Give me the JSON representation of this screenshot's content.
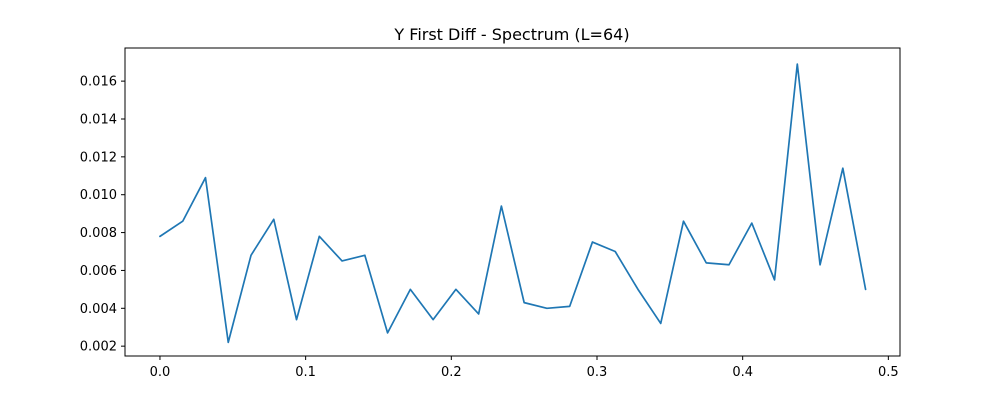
{
  "chart_data": {
    "type": "line",
    "title": "Y First Diff - Spectrum (L=64)",
    "xlabel": "",
    "ylabel": "",
    "xlim": [
      -0.024,
      0.508
    ],
    "ylim": [
      0.00148,
      0.01775
    ],
    "grid": false,
    "legend": "none",
    "x_ticks": [
      {
        "value": 0.0,
        "label": "0.0"
      },
      {
        "value": 0.1,
        "label": "0.1"
      },
      {
        "value": 0.2,
        "label": "0.2"
      },
      {
        "value": 0.3,
        "label": "0.3"
      },
      {
        "value": 0.4,
        "label": "0.4"
      },
      {
        "value": 0.5,
        "label": "0.5"
      }
    ],
    "y_ticks": [
      {
        "value": 0.002,
        "label": "0.002"
      },
      {
        "value": 0.004,
        "label": "0.004"
      },
      {
        "value": 0.006,
        "label": "0.006"
      },
      {
        "value": 0.008,
        "label": "0.008"
      },
      {
        "value": 0.01,
        "label": "0.010"
      },
      {
        "value": 0.012,
        "label": "0.012"
      },
      {
        "value": 0.014,
        "label": "0.014"
      },
      {
        "value": 0.016,
        "label": "0.016"
      }
    ],
    "series": [
      {
        "color": "#1f77b4",
        "x": [
          0.0,
          0.015625,
          0.03125,
          0.046875,
          0.0625,
          0.078125,
          0.09375,
          0.109375,
          0.125,
          0.140625,
          0.15625,
          0.171875,
          0.1875,
          0.203125,
          0.21875,
          0.234375,
          0.25,
          0.265625,
          0.28125,
          0.296875,
          0.3125,
          0.328125,
          0.34375,
          0.359375,
          0.375,
          0.390625,
          0.40625,
          0.421875,
          0.4375,
          0.453125,
          0.46875,
          0.484375
        ],
        "values": [
          0.0078,
          0.0086,
          0.0109,
          0.0022,
          0.0068,
          0.0087,
          0.0034,
          0.0078,
          0.0065,
          0.0068,
          0.0027,
          0.005,
          0.0034,
          0.005,
          0.0037,
          0.0094,
          0.0043,
          0.004,
          0.0041,
          0.0075,
          0.007,
          0.005,
          0.0032,
          0.0086,
          0.0064,
          0.0063,
          0.0085,
          0.0055,
          0.0169,
          0.0063,
          0.0114,
          0.005
        ]
      }
    ]
  }
}
